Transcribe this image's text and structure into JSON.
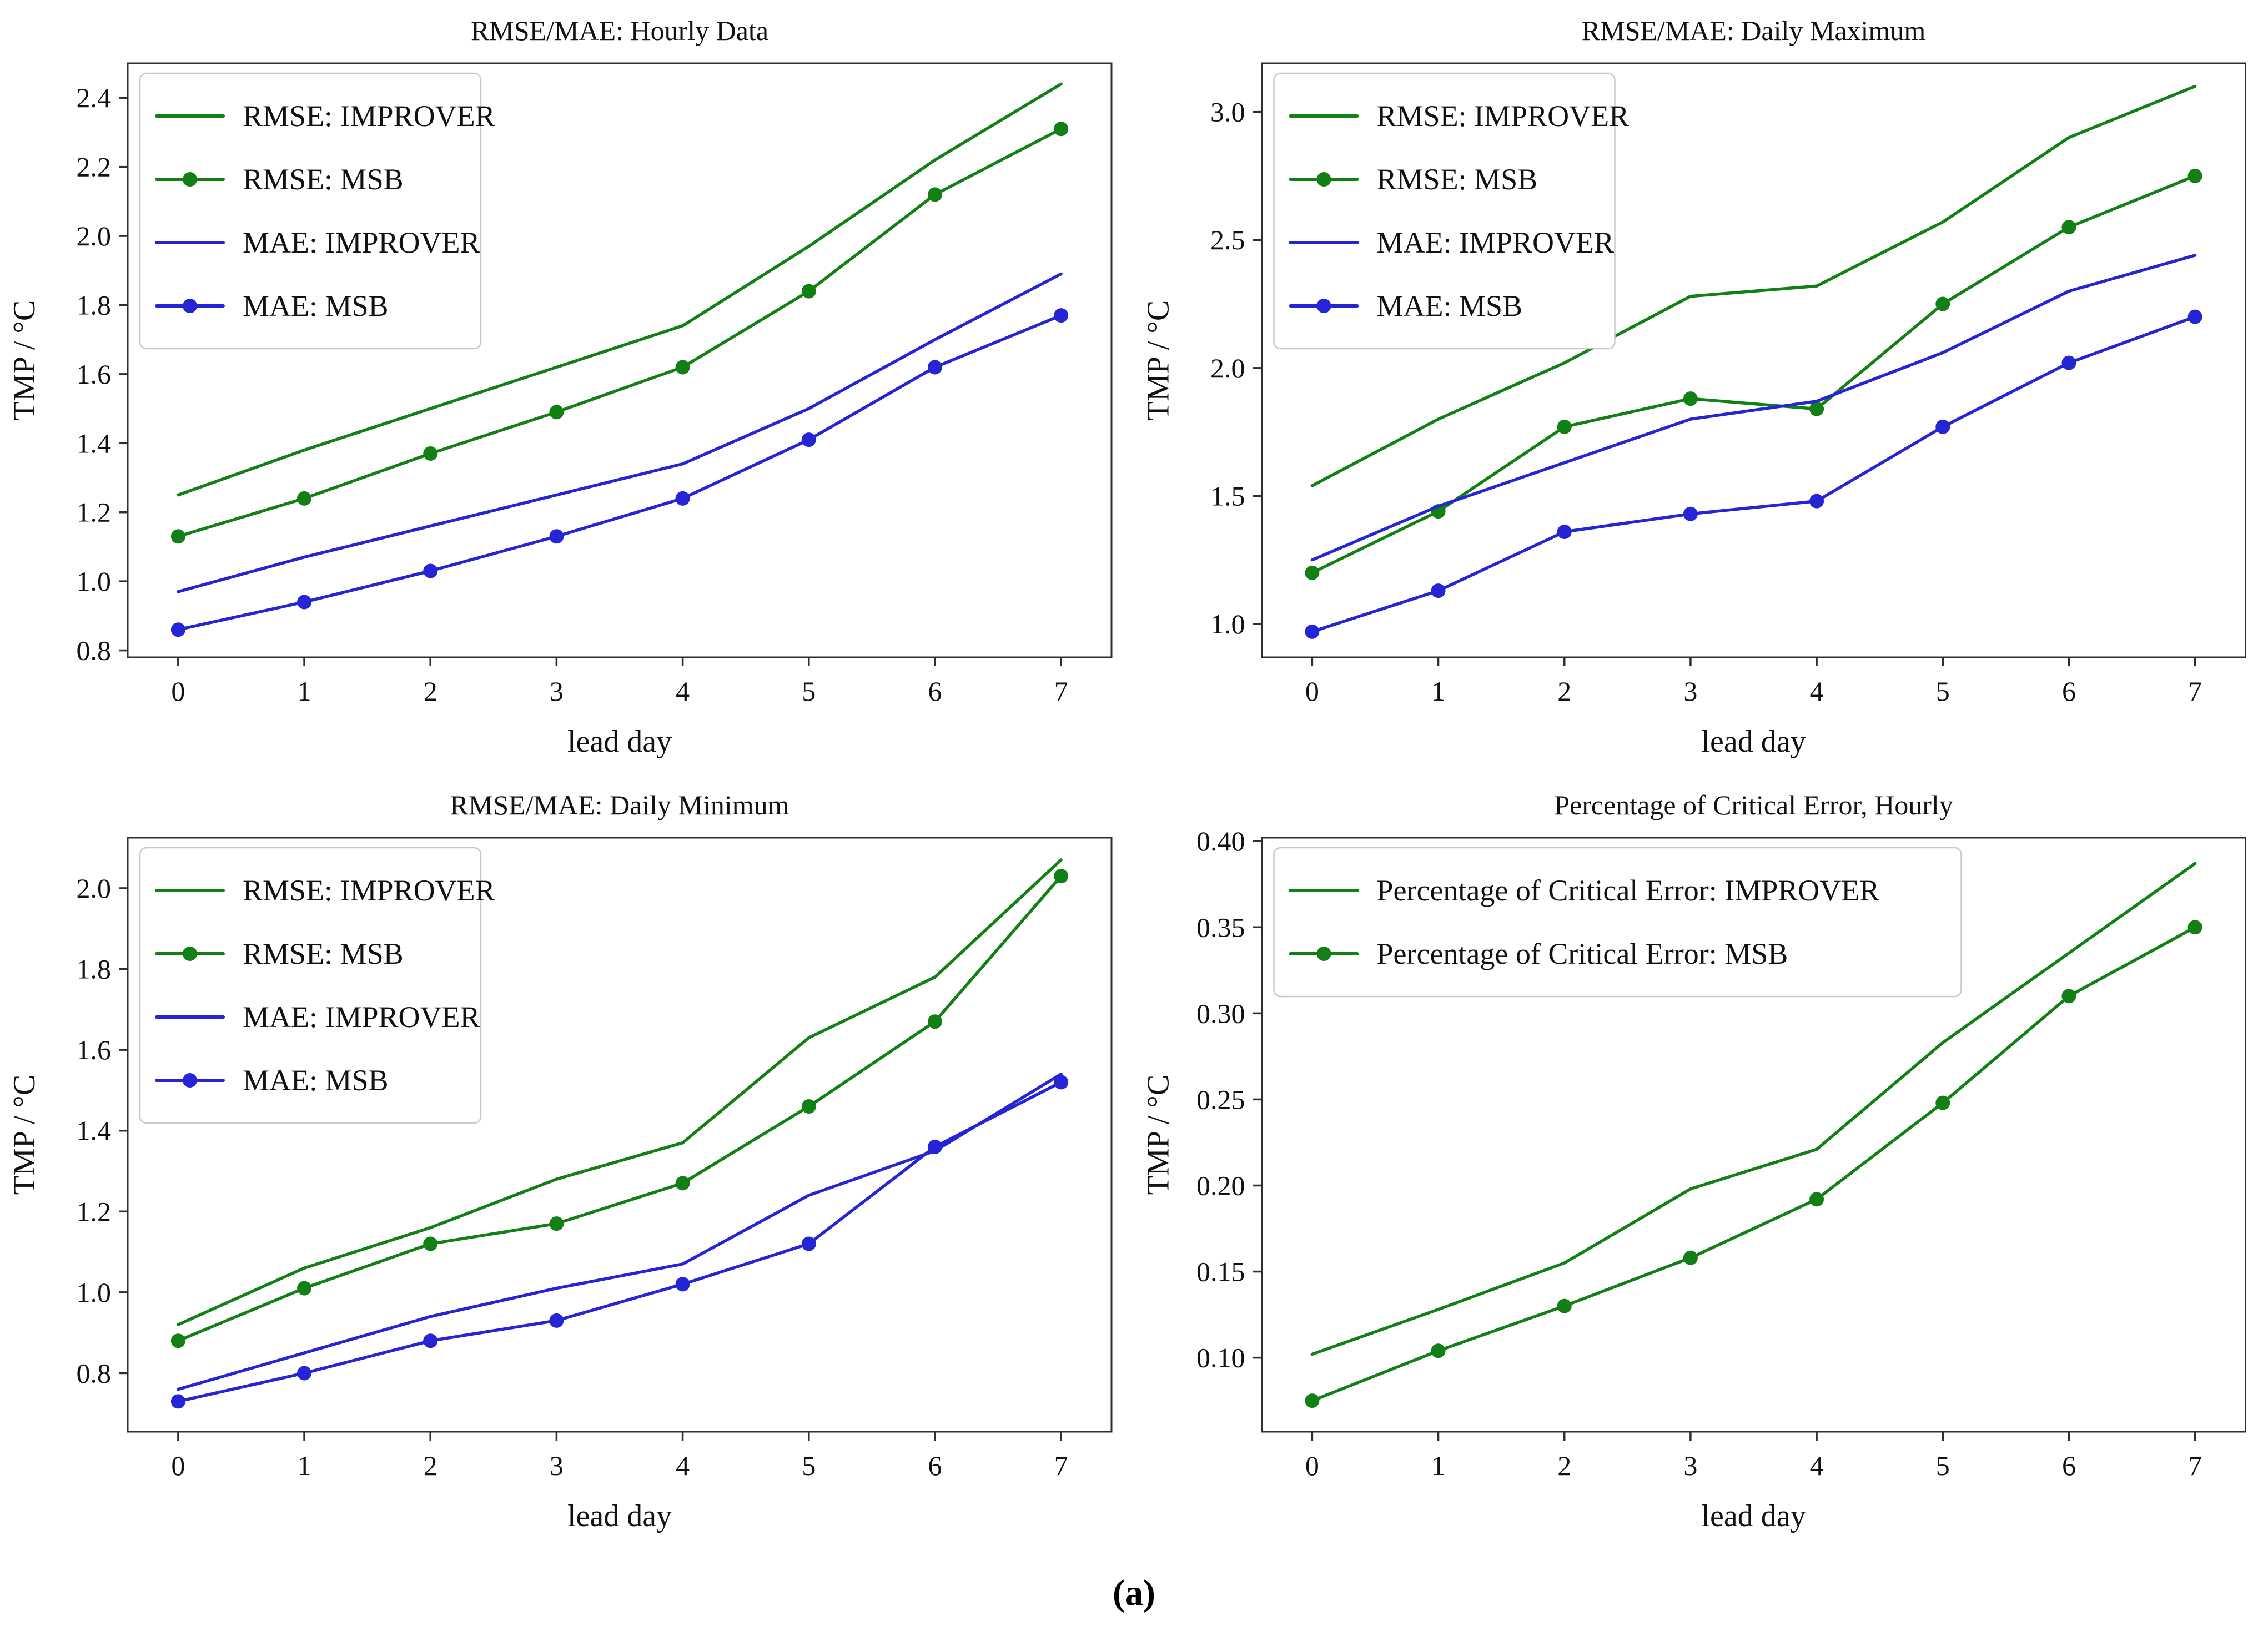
{
  "caption": {
    "label": "(a)"
  },
  "colors": {
    "green": "#128014",
    "blue": "#2525d5",
    "spine": "#2f2f2f",
    "text": "#111111",
    "legend_border": "#c9c9c9",
    "legend_fill": "#ffffff"
  },
  "chart_data": [
    {
      "type": "line",
      "title": "RMSE/MAE: Hourly Data",
      "xlabel": "lead day",
      "ylabel": "TMP / °C",
      "x": [
        0,
        1,
        2,
        3,
        4,
        5,
        6,
        7
      ],
      "xtick_labels": [
        "0",
        "1",
        "2",
        "3",
        "4",
        "5",
        "6",
        "7"
      ],
      "xlim": [
        -0.4,
        7.4
      ],
      "ylim": [
        0.78,
        2.5
      ],
      "yticks": [
        0.8,
        1.0,
        1.2,
        1.4,
        1.6,
        1.8,
        2.0,
        2.2,
        2.4
      ],
      "ytick_labels": [
        "0.8",
        "1.0",
        "1.2",
        "1.4",
        "1.6",
        "1.8",
        "2.0",
        "2.2",
        "2.4"
      ],
      "grid": false,
      "legend_position": "top-left",
      "series": [
        {
          "name": "RMSE: IMPROVER",
          "color": "green",
          "marker": false,
          "values": [
            1.25,
            1.38,
            1.5,
            1.62,
            1.74,
            1.97,
            2.22,
            2.44
          ]
        },
        {
          "name": "RMSE: MSB",
          "color": "green",
          "marker": true,
          "values": [
            1.13,
            1.24,
            1.37,
            1.49,
            1.62,
            1.84,
            2.12,
            2.31
          ]
        },
        {
          "name": "MAE: IMPROVER",
          "color": "blue",
          "marker": false,
          "values": [
            0.97,
            1.07,
            1.16,
            1.25,
            1.34,
            1.5,
            1.7,
            1.89
          ]
        },
        {
          "name": "MAE: MSB",
          "color": "blue",
          "marker": true,
          "values": [
            0.86,
            0.94,
            1.03,
            1.13,
            1.24,
            1.41,
            1.62,
            1.77
          ]
        }
      ]
    },
    {
      "type": "line",
      "title": "RMSE/MAE: Daily Maximum",
      "xlabel": "lead day",
      "ylabel": "TMP / °C",
      "x": [
        0,
        1,
        2,
        3,
        4,
        5,
        6,
        7
      ],
      "xtick_labels": [
        "0",
        "1",
        "2",
        "3",
        "4",
        "5",
        "6",
        "7"
      ],
      "xlim": [
        -0.4,
        7.4
      ],
      "ylim": [
        0.87,
        3.19
      ],
      "yticks": [
        1.0,
        1.5,
        2.0,
        2.5,
        3.0
      ],
      "ytick_labels": [
        "1.0",
        "1.5",
        "2.0",
        "2.5",
        "3.0"
      ],
      "grid": false,
      "legend_position": "top-left",
      "series": [
        {
          "name": "RMSE: IMPROVER",
          "color": "green",
          "marker": false,
          "values": [
            1.54,
            1.8,
            2.02,
            2.28,
            2.32,
            2.57,
            2.9,
            3.1
          ]
        },
        {
          "name": "RMSE: MSB",
          "color": "green",
          "marker": true,
          "values": [
            1.2,
            1.44,
            1.77,
            1.88,
            1.84,
            2.25,
            2.55,
            2.75
          ]
        },
        {
          "name": "MAE: IMPROVER",
          "color": "blue",
          "marker": false,
          "values": [
            1.25,
            1.46,
            1.63,
            1.8,
            1.87,
            2.06,
            2.3,
            2.44
          ]
        },
        {
          "name": "MAE: MSB",
          "color": "blue",
          "marker": true,
          "values": [
            0.97,
            1.13,
            1.36,
            1.43,
            1.48,
            1.77,
            2.02,
            2.2
          ]
        }
      ]
    },
    {
      "type": "line",
      "title": "RMSE/MAE: Daily Minimum",
      "xlabel": "lead day",
      "ylabel": "TMP / °C",
      "x": [
        0,
        1,
        2,
        3,
        4,
        5,
        6,
        7
      ],
      "xtick_labels": [
        "0",
        "1",
        "2",
        "3",
        "4",
        "5",
        "6",
        "7"
      ],
      "xlim": [
        -0.4,
        7.4
      ],
      "ylim": [
        0.655,
        2.125
      ],
      "yticks": [
        0.8,
        1.0,
        1.2,
        1.4,
        1.6,
        1.8,
        2.0
      ],
      "ytick_labels": [
        "0.8",
        "1.0",
        "1.2",
        "1.4",
        "1.6",
        "1.8",
        "2.0"
      ],
      "grid": false,
      "legend_position": "top-left",
      "series": [
        {
          "name": "RMSE: IMPROVER",
          "color": "green",
          "marker": false,
          "values": [
            0.92,
            1.06,
            1.16,
            1.28,
            1.37,
            1.63,
            1.78,
            2.07
          ]
        },
        {
          "name": "RMSE: MSB",
          "color": "green",
          "marker": true,
          "values": [
            0.88,
            1.01,
            1.12,
            1.17,
            1.27,
            1.46,
            1.67,
            2.03
          ]
        },
        {
          "name": "MAE: IMPROVER",
          "color": "blue",
          "marker": false,
          "values": [
            0.76,
            0.85,
            0.94,
            1.01,
            1.07,
            1.24,
            1.35,
            1.54
          ]
        },
        {
          "name": "MAE: MSB",
          "color": "blue",
          "marker": true,
          "values": [
            0.73,
            0.8,
            0.88,
            0.93,
            1.02,
            1.12,
            1.36,
            1.52
          ]
        }
      ]
    },
    {
      "type": "line",
      "title": "Percentage of Critical Error, Hourly",
      "xlabel": "lead day",
      "ylabel": "TMP / °C",
      "x": [
        0,
        1,
        2,
        3,
        4,
        5,
        6,
        7
      ],
      "xtick_labels": [
        "0",
        "1",
        "2",
        "3",
        "4",
        "5",
        "6",
        "7"
      ],
      "xlim": [
        -0.4,
        7.4
      ],
      "ylim": [
        0.057,
        0.402
      ],
      "yticks": [
        0.1,
        0.15,
        0.2,
        0.25,
        0.3,
        0.35,
        0.4
      ],
      "ytick_labels": [
        "0.10",
        "0.15",
        "0.20",
        "0.25",
        "0.30",
        "0.35",
        "0.40"
      ],
      "grid": false,
      "legend_position": "top-left",
      "series": [
        {
          "name": "Percentage of Critical Error: IMPROVER",
          "color": "green",
          "marker": false,
          "values": [
            0.102,
            0.128,
            0.155,
            0.198,
            0.221,
            0.283,
            0.335,
            0.387
          ]
        },
        {
          "name": "Percentage of Critical Error: MSB",
          "color": "green",
          "marker": true,
          "values": [
            0.075,
            0.104,
            0.13,
            0.158,
            0.192,
            0.248,
            0.31,
            0.35
          ]
        }
      ]
    }
  ]
}
